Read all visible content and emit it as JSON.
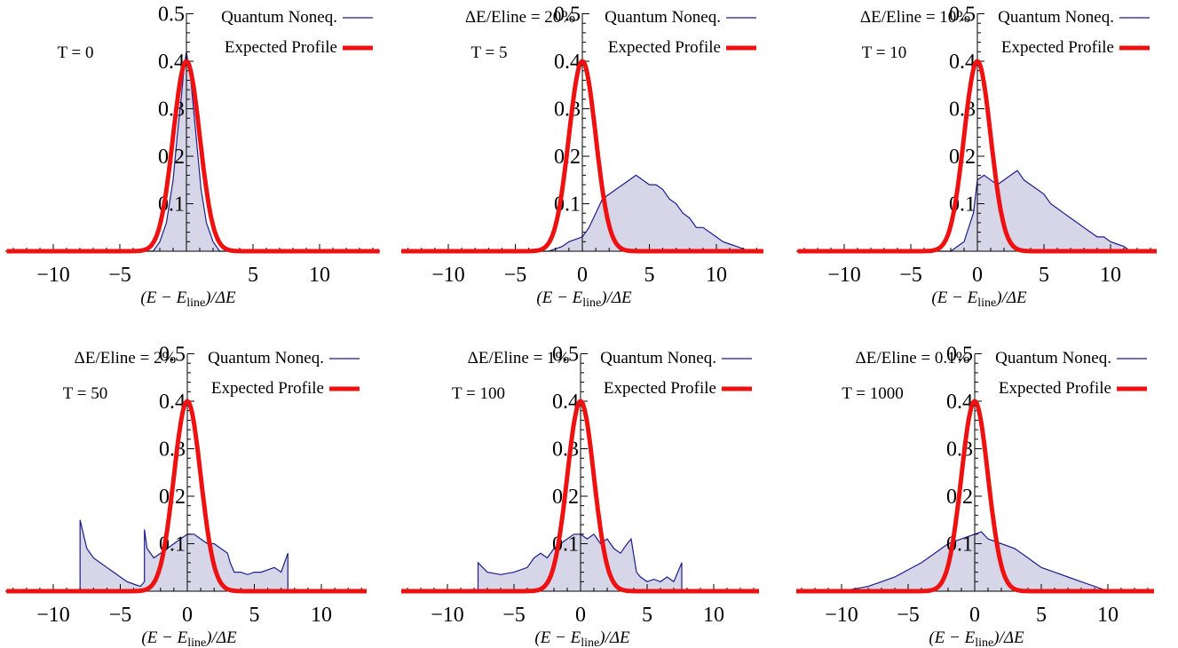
{
  "figure": {
    "legend_entries": [
      "Quantum Noneq.",
      "Expected Profile"
    ],
    "xlabel_parts": [
      "(E − E",
      "line",
      ")/ΔE"
    ]
  },
  "colors": {
    "noneq_line": "#1c1c8a",
    "noneq_fill": "#d6d6e8",
    "expected": "#ee1111",
    "axis": "#000000"
  },
  "chart_data": [
    {
      "type": "area",
      "annotation_lines": [
        "",
        "T = 0"
      ],
      "xlim": [
        -13.5,
        14.5
      ],
      "ylim": [
        0,
        0.5
      ],
      "xticks": [
        -10,
        -5,
        0,
        5,
        10
      ],
      "xtick_labels": [
        "−10",
        "−5",
        "",
        "5",
        "10"
      ],
      "yticks": [
        0.1,
        0.2,
        0.3,
        0.4,
        0.5
      ],
      "ytick_labels": [
        "0.1",
        "0.2",
        "0.3",
        "0.4",
        "0.5"
      ],
      "legend": "top-right",
      "series": [
        {
          "name": "Quantum Noneq.",
          "style": "filled-line",
          "x": [
            -13.5,
            -2.5,
            -2.0,
            -1.5,
            -1.0,
            -0.7,
            -0.4,
            -0.2,
            0.0,
            0.1,
            0.3,
            0.5,
            0.8,
            1.1,
            1.5,
            2.0,
            2.5,
            14.5
          ],
          "y": [
            0,
            0,
            0.02,
            0.06,
            0.15,
            0.24,
            0.32,
            0.38,
            0.42,
            0.4,
            0.37,
            0.31,
            0.22,
            0.13,
            0.06,
            0.02,
            0,
            0
          ]
        },
        {
          "name": "Expected Profile",
          "style": "gaussian",
          "mu": 0,
          "sigma": 1,
          "peak": 0.4
        }
      ]
    },
    {
      "type": "area",
      "annotation_lines": [
        "ΔE/Eline = 20%",
        "T = 5"
      ],
      "xlim": [
        -13.5,
        13.5
      ],
      "ylim": [
        0,
        0.5
      ],
      "xticks": [
        -10,
        -5,
        0,
        5,
        10
      ],
      "xtick_labels": [
        "−10",
        "−5",
        "0",
        "5",
        "10"
      ],
      "yticks": [
        0.1,
        0.2,
        0.3,
        0.4,
        0.5
      ],
      "ytick_labels": [
        "0.1",
        "0.2",
        "0.3",
        "0.4",
        "0.5"
      ],
      "legend": "top-right",
      "series": [
        {
          "name": "Quantum Noneq.",
          "style": "filled-line",
          "x": [
            -13.5,
            -2.5,
            -1.5,
            -1.0,
            0.0,
            0.5,
            1.0,
            1.5,
            2.0,
            2.5,
            3.0,
            3.5,
            4.0,
            4.5,
            5.0,
            5.5,
            6.0,
            6.5,
            7.0,
            7.5,
            8.0,
            8.5,
            9.0,
            9.5,
            10.0,
            10.5,
            11.0,
            11.5,
            12.0,
            12.5,
            13.5
          ],
          "y": [
            0,
            0,
            0.01,
            0.02,
            0.03,
            0.05,
            0.08,
            0.11,
            0.12,
            0.13,
            0.14,
            0.15,
            0.16,
            0.15,
            0.14,
            0.14,
            0.13,
            0.11,
            0.1,
            0.08,
            0.07,
            0.05,
            0.05,
            0.04,
            0.03,
            0.02,
            0.015,
            0.01,
            0.005,
            0.0,
            0
          ]
        },
        {
          "name": "Expected Profile",
          "style": "gaussian",
          "mu": 0,
          "sigma": 1,
          "peak": 0.4
        }
      ]
    },
    {
      "type": "area",
      "annotation_lines": [
        "ΔE/Eline = 10%",
        "T = 10"
      ],
      "xlim": [
        -13.5,
        13.5
      ],
      "ylim": [
        0,
        0.5
      ],
      "xticks": [
        -10,
        -5,
        0,
        5,
        10
      ],
      "xtick_labels": [
        "−10",
        "−5",
        "0",
        "5",
        "10"
      ],
      "yticks": [
        0.1,
        0.2,
        0.3,
        0.4,
        0.5
      ],
      "ytick_labels": [
        "0.1",
        "0.2",
        "0.3",
        "0.4",
        "0.5"
      ],
      "legend": "top-right",
      "series": [
        {
          "name": "Quantum Noneq.",
          "style": "filled-line",
          "x": [
            -13.5,
            -2.0,
            -1.0,
            -0.3,
            0.0,
            0.5,
            1.0,
            1.5,
            2.0,
            2.5,
            3.0,
            3.5,
            4.0,
            4.5,
            5.0,
            5.5,
            6.0,
            6.5,
            7.0,
            7.5,
            8.0,
            8.5,
            9.0,
            9.5,
            10.0,
            10.5,
            11.0,
            11.5,
            13.5
          ],
          "y": [
            0,
            0,
            0.02,
            0.08,
            0.15,
            0.16,
            0.15,
            0.14,
            0.15,
            0.16,
            0.17,
            0.15,
            0.14,
            0.13,
            0.12,
            0.1,
            0.09,
            0.08,
            0.07,
            0.06,
            0.05,
            0.04,
            0.03,
            0.03,
            0.02,
            0.015,
            0.01,
            0.0,
            0
          ]
        },
        {
          "name": "Expected Profile",
          "style": "gaussian",
          "mu": 0,
          "sigma": 1,
          "peak": 0.4
        }
      ]
    },
    {
      "type": "area",
      "annotation_lines": [
        "ΔE/Eline = 2%",
        "T = 50"
      ],
      "xlim": [
        -13.5,
        13.5
      ],
      "ylim": [
        0,
        0.5
      ],
      "xticks": [
        -10,
        -5,
        0,
        5,
        10
      ],
      "xtick_labels": [
        "−10",
        "−5",
        "0",
        "5",
        "10"
      ],
      "yticks": [
        0.1,
        0.2,
        0.3,
        0.4,
        0.5
      ],
      "ytick_labels": [
        "0.1",
        "0.2",
        "0.3",
        "0.4",
        "0.5"
      ],
      "legend": "top-right",
      "series": [
        {
          "name": "Quantum Noneq.",
          "style": "filled-line",
          "x": [
            -13.5,
            -8.0,
            -8.0,
            -7.5,
            -7.0,
            -6.5,
            -6.0,
            -5.5,
            -5.0,
            -4.5,
            -4.0,
            -3.5,
            -3.2,
            -3.2,
            -3.0,
            -2.5,
            -2.0,
            -1.5,
            -1.0,
            -0.5,
            0.0,
            0.5,
            1.0,
            1.5,
            2.0,
            2.5,
            3.0,
            3.2,
            3.5,
            4.0,
            4.5,
            5.0,
            5.5,
            6.0,
            6.5,
            7.0,
            7.5,
            7.5,
            13.5
          ],
          "y": [
            0,
            0,
            0.15,
            0.09,
            0.07,
            0.06,
            0.05,
            0.04,
            0.03,
            0.02,
            0.015,
            0.01,
            0.02,
            0.13,
            0.09,
            0.07,
            0.08,
            0.09,
            0.1,
            0.11,
            0.12,
            0.12,
            0.11,
            0.1,
            0.1,
            0.09,
            0.08,
            0.06,
            0.04,
            0.04,
            0.035,
            0.04,
            0.04,
            0.045,
            0.05,
            0.04,
            0.08,
            0,
            0
          ]
        },
        {
          "name": "Expected Profile",
          "style": "gaussian",
          "mu": 0,
          "sigma": 1,
          "peak": 0.4
        }
      ]
    },
    {
      "type": "area",
      "annotation_lines": [
        "ΔE/Eline = 1%",
        "T = 100"
      ],
      "xlim": [
        -13.5,
        13.5
      ],
      "ylim": [
        0,
        0.5
      ],
      "xticks": [
        -10,
        -5,
        0,
        5,
        10
      ],
      "xtick_labels": [
        "−10",
        "−5",
        "0",
        "5",
        "10"
      ],
      "yticks": [
        0.1,
        0.2,
        0.3,
        0.4,
        0.5
      ],
      "ytick_labels": [
        "0.1",
        "0.2",
        "0.3",
        "0.4",
        "0.5"
      ],
      "legend": "top-right",
      "series": [
        {
          "name": "Quantum Noneq.",
          "style": "filled-line",
          "x": [
            -13.5,
            -7.7,
            -7.7,
            -7.0,
            -6.0,
            -5.0,
            -4.0,
            -3.5,
            -3.0,
            -2.5,
            -2.0,
            -1.5,
            -1.0,
            -0.5,
            0.0,
            0.5,
            1.0,
            1.5,
            2.0,
            2.5,
            3.0,
            3.5,
            3.8,
            4.2,
            4.5,
            5.0,
            5.5,
            6.0,
            6.5,
            7.0,
            7.6,
            7.6,
            13.5
          ],
          "y": [
            0,
            0,
            0.06,
            0.04,
            0.035,
            0.04,
            0.05,
            0.07,
            0.08,
            0.07,
            0.09,
            0.1,
            0.11,
            0.12,
            0.12,
            0.11,
            0.12,
            0.1,
            0.11,
            0.09,
            0.08,
            0.1,
            0.11,
            0.04,
            0.03,
            0.02,
            0.025,
            0.02,
            0.03,
            0.02,
            0.06,
            0,
            0
          ]
        },
        {
          "name": "Expected Profile",
          "style": "gaussian",
          "mu": 0,
          "sigma": 1,
          "peak": 0.4
        }
      ]
    },
    {
      "type": "area",
      "annotation_lines": [
        "ΔE/Eline = 0.1%",
        "T = 1000"
      ],
      "xlim": [
        -13.5,
        13.5
      ],
      "ylim": [
        0,
        0.5
      ],
      "xticks": [
        -10,
        -5,
        0,
        5,
        10
      ],
      "xtick_labels": [
        "−10",
        "−5",
        "0",
        "5",
        "10"
      ],
      "yticks": [
        0.1,
        0.2,
        0.3,
        0.4,
        0.5
      ],
      "ytick_labels": [
        "0.1",
        "0.2",
        "0.3",
        "0.4",
        "0.5"
      ],
      "legend": "top-right",
      "series": [
        {
          "name": "Quantum Noneq.",
          "style": "filled-line",
          "x": [
            -13.5,
            -10.0,
            -9.0,
            -8.0,
            -7.0,
            -6.0,
            -5.0,
            -4.0,
            -3.0,
            -2.0,
            -1.0,
            0.0,
            0.5,
            1.0,
            2.0,
            3.0,
            4.0,
            5.0,
            6.0,
            7.0,
            8.0,
            9.0,
            10.0,
            13.5
          ],
          "y": [
            0,
            0,
            0.005,
            0.01,
            0.02,
            0.03,
            0.045,
            0.06,
            0.08,
            0.1,
            0.11,
            0.12,
            0.125,
            0.11,
            0.1,
            0.09,
            0.07,
            0.05,
            0.04,
            0.03,
            0.02,
            0.01,
            0.0,
            0
          ]
        },
        {
          "name": "Expected Profile",
          "style": "gaussian",
          "mu": 0,
          "sigma": 1,
          "peak": 0.4
        }
      ]
    }
  ]
}
